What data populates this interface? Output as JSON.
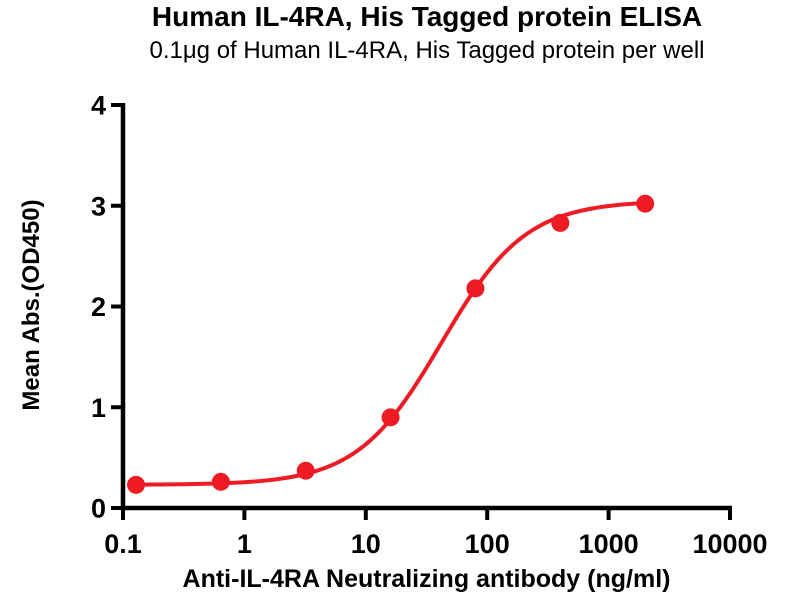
{
  "title": "Human IL-4RA, His Tagged protein ELISA",
  "subtitle": "0.1μg of Human IL-4RA, His Tagged protein per well",
  "chart_data": {
    "type": "scatter",
    "title": "Human IL-4RA, His Tagged protein ELISA",
    "subtitle": "0.1μg of Human IL-4RA, His Tagged protein per well",
    "xlabel": "Anti-IL-4RA Neutralizing antibody (ng/ml)",
    "ylabel": "Mean Abs.(OD450)",
    "x_scale": "log10",
    "xlim": [
      0.1,
      10000
    ],
    "ylim": [
      0,
      4
    ],
    "x_ticks": [
      0.1,
      1,
      10,
      100,
      1000,
      10000
    ],
    "x_tick_labels": [
      "0.1",
      "1",
      "10",
      "100",
      "1000",
      "10000"
    ],
    "y_ticks": [
      0,
      1,
      2,
      3,
      4
    ],
    "y_tick_labels": [
      "0",
      "1",
      "2",
      "3",
      "4"
    ],
    "grid": false,
    "legend_position": "none",
    "series": [
      {
        "name": "Anti-IL-4RA Neutralizing antibody",
        "marker": "filled-circle",
        "line": "4PL-fit-curve",
        "x": [
          0.128,
          0.64,
          3.2,
          16,
          80,
          400,
          2000
        ],
        "y": [
          0.23,
          0.26,
          0.37,
          0.9,
          2.18,
          2.83,
          3.02
        ],
        "fit": {
          "model": "4PL",
          "bottom": 0.23,
          "top": 3.05,
          "ec50": 42,
          "hill": 1.25
        }
      }
    ]
  },
  "colors": {
    "series": "#ED1C24",
    "axis": "#000000",
    "text": "#000000",
    "background": "#FFFFFF"
  }
}
